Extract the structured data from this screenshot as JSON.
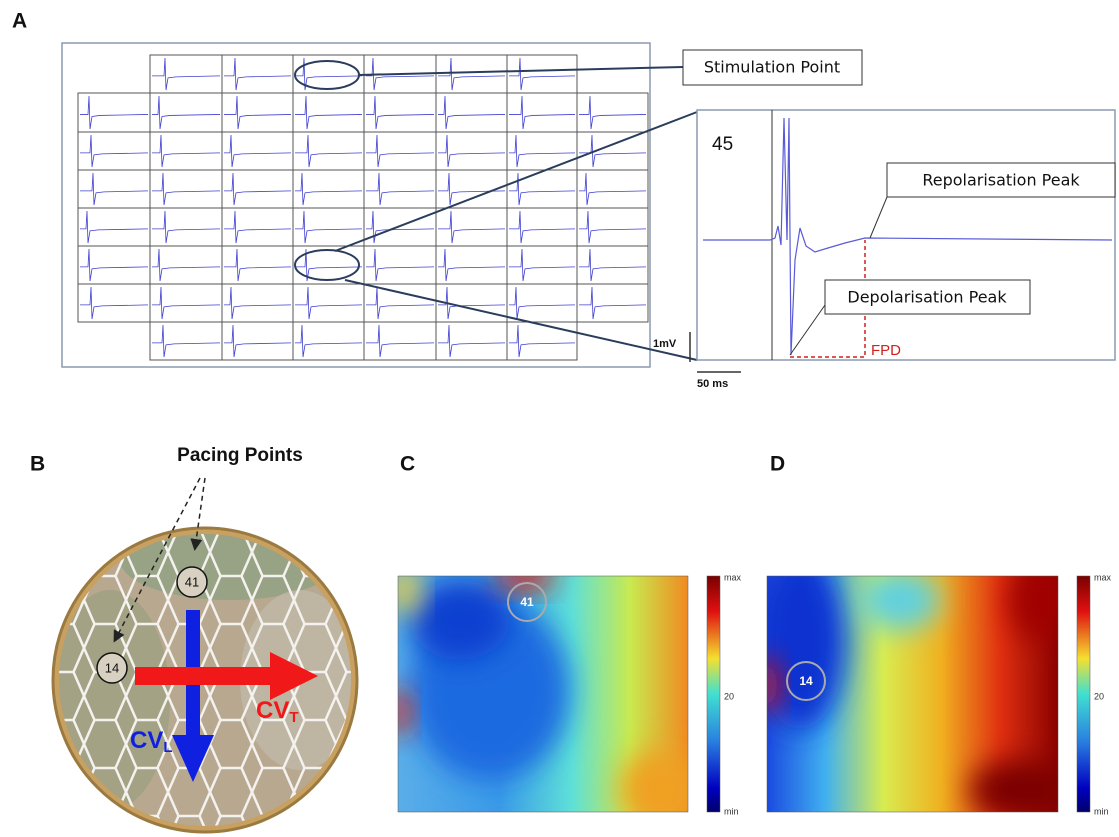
{
  "panel_a": {
    "label": "A",
    "stimulation_point": "Stimulation Point",
    "channel_label": "45",
    "repolarisation_peak": "Repolarisation Peak",
    "depolarisation_peak": "Depolarisation Peak",
    "fpd": "FPD",
    "scale_voltage": "1mV",
    "scale_time": "50 ms"
  },
  "panel_b": {
    "label": "B",
    "pacing_points": "Pacing Points",
    "markers": [
      "41",
      "14"
    ],
    "cv_longitudinal": {
      "main": "CV",
      "sub": "L"
    },
    "cv_transverse": {
      "main": "CV",
      "sub": "T"
    }
  },
  "panel_c": {
    "label": "C",
    "marker": "41",
    "colorbar": {
      "max": "max",
      "mid": "20",
      "min": "min"
    }
  },
  "panel_d": {
    "label": "D",
    "marker": "14",
    "colorbar": {
      "max": "max",
      "mid": "20",
      "min": "min"
    }
  }
}
